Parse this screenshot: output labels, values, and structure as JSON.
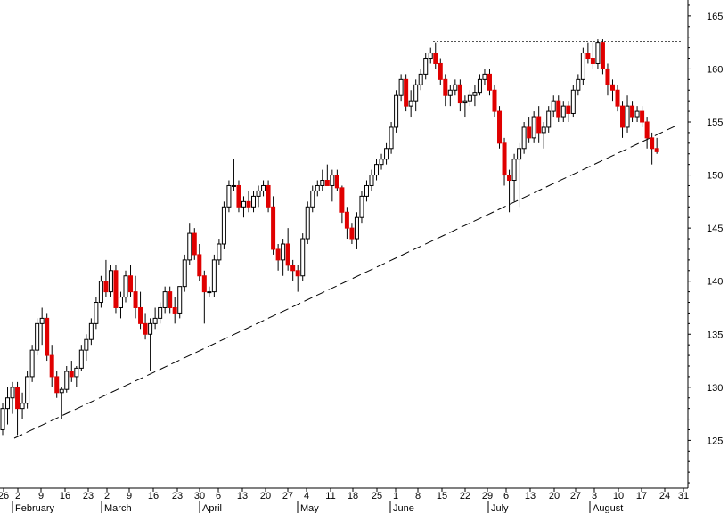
{
  "chart_data": {
    "type": "candlestick",
    "y_axis": {
      "position": "right",
      "ylim": [
        120.5,
        166.5
      ],
      "ticks": [
        125,
        130,
        135,
        140,
        145,
        150,
        155,
        160,
        165
      ]
    },
    "x_axis": {
      "day_labels": [
        "26",
        "2",
        "9",
        "16",
        "23",
        "2",
        "9",
        "16",
        "23",
        "30",
        "6",
        "13",
        "20",
        "27",
        "4",
        "11",
        "18",
        "25",
        "1",
        "8",
        "15",
        "22",
        "29",
        "6",
        "13",
        "20",
        "27",
        "3",
        "10",
        "17",
        "24",
        "31"
      ],
      "month_labels": [
        "February",
        "March",
        "April",
        "May",
        "June",
        "July",
        "August"
      ]
    },
    "colors": {
      "up_body": "#ffffff",
      "down_body": "#e00000",
      "outline": "#000000",
      "trendline": "#000000",
      "resistance": "#555555"
    },
    "candles": [
      {
        "o": 126.0,
        "h": 128.5,
        "l": 125.5,
        "c": 128.0
      },
      {
        "o": 128.0,
        "h": 130.0,
        "l": 126.5,
        "c": 129.0
      },
      {
        "o": 129.0,
        "h": 130.5,
        "l": 127.5,
        "c": 130.0
      },
      {
        "o": 130.0,
        "h": 130.5,
        "l": 125.5,
        "c": 128.0
      },
      {
        "o": 128.0,
        "h": 129.5,
        "l": 127.0,
        "c": 128.5
      },
      {
        "o": 128.5,
        "h": 131.5,
        "l": 128.0,
        "c": 131.0
      },
      {
        "o": 131.0,
        "h": 134.0,
        "l": 130.5,
        "c": 133.5
      },
      {
        "o": 133.5,
        "h": 136.5,
        "l": 133.0,
        "c": 136.0
      },
      {
        "o": 136.0,
        "h": 137.5,
        "l": 134.0,
        "c": 136.5
      },
      {
        "o": 136.5,
        "h": 137.0,
        "l": 132.5,
        "c": 133.0
      },
      {
        "o": 133.0,
        "h": 134.0,
        "l": 130.0,
        "c": 131.0
      },
      {
        "o": 131.0,
        "h": 131.5,
        "l": 129.0,
        "c": 129.5
      },
      {
        "o": 129.5,
        "h": 130.0,
        "l": 127.0,
        "c": 129.8
      },
      {
        "o": 129.8,
        "h": 132.0,
        "l": 129.5,
        "c": 131.5
      },
      {
        "o": 131.5,
        "h": 132.5,
        "l": 130.5,
        "c": 131.0
      },
      {
        "o": 131.0,
        "h": 132.0,
        "l": 130.0,
        "c": 131.8
      },
      {
        "o": 131.8,
        "h": 134.0,
        "l": 131.5,
        "c": 133.5
      },
      {
        "o": 133.5,
        "h": 135.0,
        "l": 132.5,
        "c": 134.5
      },
      {
        "o": 134.5,
        "h": 136.5,
        "l": 134.0,
        "c": 136.0
      },
      {
        "o": 136.0,
        "h": 138.5,
        "l": 135.5,
        "c": 138.0
      },
      {
        "o": 138.0,
        "h": 140.5,
        "l": 137.5,
        "c": 140.0
      },
      {
        "o": 140.0,
        "h": 142.0,
        "l": 138.5,
        "c": 139.0
      },
      {
        "o": 139.0,
        "h": 141.5,
        "l": 138.5,
        "c": 141.0
      },
      {
        "o": 141.0,
        "h": 141.5,
        "l": 137.0,
        "c": 137.5
      },
      {
        "o": 137.5,
        "h": 139.0,
        "l": 136.5,
        "c": 138.5
      },
      {
        "o": 138.5,
        "h": 141.0,
        "l": 138.0,
        "c": 140.5
      },
      {
        "o": 140.5,
        "h": 141.5,
        "l": 138.5,
        "c": 139.0
      },
      {
        "o": 139.0,
        "h": 140.5,
        "l": 136.5,
        "c": 137.5
      },
      {
        "o": 137.5,
        "h": 139.0,
        "l": 135.5,
        "c": 136.0
      },
      {
        "o": 136.0,
        "h": 137.0,
        "l": 134.5,
        "c": 135.0
      },
      {
        "o": 135.0,
        "h": 136.5,
        "l": 131.5,
        "c": 136.0
      },
      {
        "o": 136.0,
        "h": 137.5,
        "l": 135.5,
        "c": 136.5
      },
      {
        "o": 136.5,
        "h": 138.0,
        "l": 136.0,
        "c": 137.5
      },
      {
        "o": 137.5,
        "h": 139.5,
        "l": 137.0,
        "c": 139.0
      },
      {
        "o": 139.0,
        "h": 139.5,
        "l": 137.0,
        "c": 137.5
      },
      {
        "o": 137.5,
        "h": 138.5,
        "l": 136.0,
        "c": 137.0
      },
      {
        "o": 137.0,
        "h": 139.5,
        "l": 136.5,
        "c": 139.5
      },
      {
        "o": 139.5,
        "h": 142.5,
        "l": 139.0,
        "c": 142.0
      },
      {
        "o": 142.0,
        "h": 145.5,
        "l": 141.5,
        "c": 144.5
      },
      {
        "o": 144.5,
        "h": 145.0,
        "l": 142.0,
        "c": 142.5
      },
      {
        "o": 142.5,
        "h": 143.5,
        "l": 140.0,
        "c": 140.5
      },
      {
        "o": 140.5,
        "h": 141.0,
        "l": 136.0,
        "c": 139.0
      },
      {
        "o": 139.0,
        "h": 139.5,
        "l": 138.5,
        "c": 139.0
      },
      {
        "o": 139.0,
        "h": 142.5,
        "l": 138.5,
        "c": 142.0
      },
      {
        "o": 142.0,
        "h": 144.0,
        "l": 141.5,
        "c": 143.5
      },
      {
        "o": 143.5,
        "h": 147.5,
        "l": 143.0,
        "c": 147.0
      },
      {
        "o": 147.0,
        "h": 149.5,
        "l": 146.5,
        "c": 149.0
      },
      {
        "o": 149.0,
        "h": 151.5,
        "l": 148.5,
        "c": 149.0
      },
      {
        "o": 149.0,
        "h": 149.5,
        "l": 146.5,
        "c": 147.0
      },
      {
        "o": 147.0,
        "h": 148.0,
        "l": 146.0,
        "c": 147.5
      },
      {
        "o": 147.5,
        "h": 148.5,
        "l": 146.5,
        "c": 147.0
      },
      {
        "o": 147.0,
        "h": 148.5,
        "l": 146.5,
        "c": 148.0
      },
      {
        "o": 148.0,
        "h": 149.0,
        "l": 147.0,
        "c": 148.5
      },
      {
        "o": 148.5,
        "h": 149.5,
        "l": 148.0,
        "c": 149.0
      },
      {
        "o": 149.0,
        "h": 149.5,
        "l": 146.5,
        "c": 147.0
      },
      {
        "o": 147.0,
        "h": 148.0,
        "l": 142.5,
        "c": 143.0
      },
      {
        "o": 143.0,
        "h": 143.5,
        "l": 141.0,
        "c": 142.0
      },
      {
        "o": 142.0,
        "h": 144.0,
        "l": 140.5,
        "c": 143.5
      },
      {
        "o": 143.5,
        "h": 145.0,
        "l": 141.0,
        "c": 141.5
      },
      {
        "o": 141.5,
        "h": 142.0,
        "l": 140.0,
        "c": 141.0
      },
      {
        "o": 141.0,
        "h": 141.5,
        "l": 139.0,
        "c": 140.5
      },
      {
        "o": 140.5,
        "h": 144.5,
        "l": 140.0,
        "c": 144.0
      },
      {
        "o": 144.0,
        "h": 147.5,
        "l": 143.5,
        "c": 147.0
      },
      {
        "o": 147.0,
        "h": 149.0,
        "l": 146.5,
        "c": 148.5
      },
      {
        "o": 148.5,
        "h": 149.5,
        "l": 148.0,
        "c": 149.0
      },
      {
        "o": 149.0,
        "h": 150.5,
        "l": 148.5,
        "c": 149.5
      },
      {
        "o": 149.5,
        "h": 151.0,
        "l": 149.0,
        "c": 149.0
      },
      {
        "o": 149.0,
        "h": 150.5,
        "l": 147.5,
        "c": 150.0
      },
      {
        "o": 150.0,
        "h": 150.5,
        "l": 148.5,
        "c": 148.8
      },
      {
        "o": 148.8,
        "h": 149.0,
        "l": 145.5,
        "c": 146.5
      },
      {
        "o": 146.5,
        "h": 147.0,
        "l": 144.0,
        "c": 145.0
      },
      {
        "o": 145.0,
        "h": 145.5,
        "l": 143.5,
        "c": 144.0
      },
      {
        "o": 144.0,
        "h": 146.5,
        "l": 143.0,
        "c": 146.0
      },
      {
        "o": 146.0,
        "h": 148.5,
        "l": 145.5,
        "c": 148.0
      },
      {
        "o": 148.0,
        "h": 149.5,
        "l": 147.5,
        "c": 149.0
      },
      {
        "o": 149.0,
        "h": 150.5,
        "l": 148.5,
        "c": 150.0
      },
      {
        "o": 150.0,
        "h": 151.5,
        "l": 149.5,
        "c": 151.0
      },
      {
        "o": 151.0,
        "h": 152.0,
        "l": 150.5,
        "c": 151.5
      },
      {
        "o": 151.5,
        "h": 153.0,
        "l": 151.0,
        "c": 152.5
      },
      {
        "o": 152.5,
        "h": 155.0,
        "l": 152.0,
        "c": 154.5
      },
      {
        "o": 154.5,
        "h": 158.0,
        "l": 154.0,
        "c": 157.5
      },
      {
        "o": 157.5,
        "h": 159.5,
        "l": 157.0,
        "c": 159.0
      },
      {
        "o": 159.0,
        "h": 159.5,
        "l": 156.0,
        "c": 156.5
      },
      {
        "o": 156.5,
        "h": 158.0,
        "l": 155.5,
        "c": 157.0
      },
      {
        "o": 157.0,
        "h": 159.0,
        "l": 156.0,
        "c": 158.5
      },
      {
        "o": 158.5,
        "h": 160.0,
        "l": 158.0,
        "c": 159.5
      },
      {
        "o": 159.5,
        "h": 161.5,
        "l": 159.0,
        "c": 161.0
      },
      {
        "o": 161.0,
        "h": 162.0,
        "l": 160.5,
        "c": 161.5
      },
      {
        "o": 161.5,
        "h": 162.5,
        "l": 160.0,
        "c": 160.5
      },
      {
        "o": 160.5,
        "h": 161.0,
        "l": 158.5,
        "c": 159.0
      },
      {
        "o": 159.0,
        "h": 159.5,
        "l": 156.5,
        "c": 157.5
      },
      {
        "o": 157.5,
        "h": 158.5,
        "l": 156.5,
        "c": 158.0
      },
      {
        "o": 158.0,
        "h": 159.0,
        "l": 157.5,
        "c": 158.5
      },
      {
        "o": 158.5,
        "h": 159.0,
        "l": 156.0,
        "c": 156.8
      },
      {
        "o": 156.8,
        "h": 157.5,
        "l": 155.5,
        "c": 157.0
      },
      {
        "o": 157.0,
        "h": 158.0,
        "l": 156.5,
        "c": 157.5
      },
      {
        "o": 157.5,
        "h": 158.5,
        "l": 156.5,
        "c": 157.8
      },
      {
        "o": 157.8,
        "h": 159.5,
        "l": 157.5,
        "c": 159.0
      },
      {
        "o": 159.0,
        "h": 160.0,
        "l": 158.5,
        "c": 159.5
      },
      {
        "o": 159.5,
        "h": 160.0,
        "l": 157.5,
        "c": 158.0
      },
      {
        "o": 158.0,
        "h": 158.5,
        "l": 155.5,
        "c": 156.0
      },
      {
        "o": 156.0,
        "h": 156.5,
        "l": 152.5,
        "c": 153.0
      },
      {
        "o": 153.0,
        "h": 153.5,
        "l": 149.0,
        "c": 150.0
      },
      {
        "o": 150.0,
        "h": 150.5,
        "l": 146.5,
        "c": 149.5
      },
      {
        "o": 149.5,
        "h": 152.0,
        "l": 147.5,
        "c": 151.5
      },
      {
        "o": 151.5,
        "h": 153.0,
        "l": 147.0,
        "c": 152.5
      },
      {
        "o": 152.5,
        "h": 155.0,
        "l": 152.0,
        "c": 154.5
      },
      {
        "o": 154.5,
        "h": 155.5,
        "l": 153.0,
        "c": 153.5
      },
      {
        "o": 153.5,
        "h": 156.0,
        "l": 153.0,
        "c": 155.5
      },
      {
        "o": 155.5,
        "h": 156.5,
        "l": 153.0,
        "c": 154.0
      },
      {
        "o": 154.0,
        "h": 155.0,
        "l": 152.5,
        "c": 154.5
      },
      {
        "o": 154.5,
        "h": 156.5,
        "l": 154.0,
        "c": 156.0
      },
      {
        "o": 156.0,
        "h": 157.5,
        "l": 155.5,
        "c": 157.0
      },
      {
        "o": 157.0,
        "h": 157.5,
        "l": 155.0,
        "c": 155.5
      },
      {
        "o": 155.5,
        "h": 157.0,
        "l": 155.0,
        "c": 156.5
      },
      {
        "o": 156.5,
        "h": 157.0,
        "l": 155.0,
        "c": 155.8
      },
      {
        "o": 155.8,
        "h": 158.5,
        "l": 155.5,
        "c": 158.0
      },
      {
        "o": 158.0,
        "h": 159.5,
        "l": 157.5,
        "c": 159.0
      },
      {
        "o": 159.0,
        "h": 162.0,
        "l": 158.5,
        "c": 161.5
      },
      {
        "o": 161.5,
        "h": 162.5,
        "l": 160.5,
        "c": 161.0
      },
      {
        "o": 161.0,
        "h": 162.5,
        "l": 160.0,
        "c": 160.5
      },
      {
        "o": 160.5,
        "h": 162.8,
        "l": 160.0,
        "c": 162.5
      },
      {
        "o": 162.5,
        "h": 162.8,
        "l": 159.5,
        "c": 160.0
      },
      {
        "o": 160.0,
        "h": 160.5,
        "l": 157.5,
        "c": 158.5
      },
      {
        "o": 158.5,
        "h": 159.0,
        "l": 157.0,
        "c": 158.0
      },
      {
        "o": 158.0,
        "h": 158.5,
        "l": 156.0,
        "c": 156.5
      },
      {
        "o": 156.5,
        "h": 157.0,
        "l": 153.5,
        "c": 154.5
      },
      {
        "o": 154.5,
        "h": 157.5,
        "l": 154.0,
        "c": 156.5
      },
      {
        "o": 156.5,
        "h": 157.0,
        "l": 155.0,
        "c": 155.5
      },
      {
        "o": 155.5,
        "h": 156.5,
        "l": 155.0,
        "c": 156.0
      },
      {
        "o": 156.0,
        "h": 156.5,
        "l": 154.5,
        "c": 155.0
      },
      {
        "o": 155.0,
        "h": 155.5,
        "l": 152.5,
        "c": 153.5
      },
      {
        "o": 153.5,
        "h": 154.0,
        "l": 151.0,
        "c": 152.5
      },
      {
        "o": 152.5,
        "h": 153.5,
        "l": 152.0,
        "c": 152.2
      }
    ]
  }
}
